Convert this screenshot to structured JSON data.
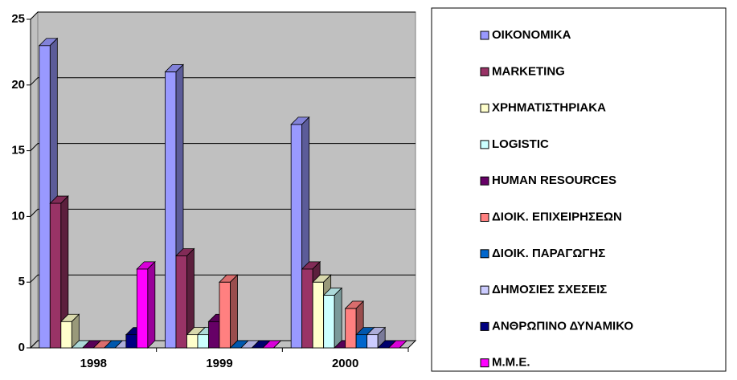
{
  "chart_data": {
    "type": "bar",
    "categories": [
      "1998",
      "1999",
      "2000"
    ],
    "series": [
      {
        "name": "ΟΙΚΟΝΟΜΙΚΑ",
        "color": "#9999ff",
        "values": [
          23,
          21,
          17
        ]
      },
      {
        "name": "MARKETING",
        "color": "#993366",
        "values": [
          11,
          7,
          6
        ]
      },
      {
        "name": "ΧΡΗΜΑΤΙΣΤΗΡΙΑΚΑ",
        "color": "#ffffcc",
        "values": [
          2,
          1,
          5
        ]
      },
      {
        "name": "LOGISTIC",
        "color": "#ccffff",
        "values": [
          0,
          1,
          4
        ]
      },
      {
        "name": "HUMAN RESOURCES",
        "color": "#660066",
        "values": [
          0,
          2,
          0
        ]
      },
      {
        "name": "ΔΙΟΙΚ. ΕΠΙΧΕΙΡΗΣΕΩΝ",
        "color": "#ff8080",
        "values": [
          0,
          5,
          3
        ]
      },
      {
        "name": "ΔΙΟΙΚ. ΠΑΡΑΓΩΓΗΣ",
        "color": "#0066cc",
        "values": [
          0,
          0,
          1
        ]
      },
      {
        "name": "ΔΗΜΟΣΙΕΣ ΣΧΕΣΕΙΣ",
        "color": "#ccccff",
        "values": [
          0,
          0,
          1
        ]
      },
      {
        "name": "ΑΝΘΡΩΠΙΝΟ ΔΥΝΑΜΙΚΟ",
        "color": "#000080",
        "values": [
          1,
          0,
          0
        ]
      },
      {
        "name": "Μ.Μ.Ε.",
        "color": "#ff00ff",
        "values": [
          6,
          0,
          0
        ]
      }
    ],
    "ylim": [
      0,
      25
    ],
    "yticks": [
      0,
      5,
      10,
      15,
      20,
      25
    ],
    "grid": true,
    "legend": "right"
  }
}
